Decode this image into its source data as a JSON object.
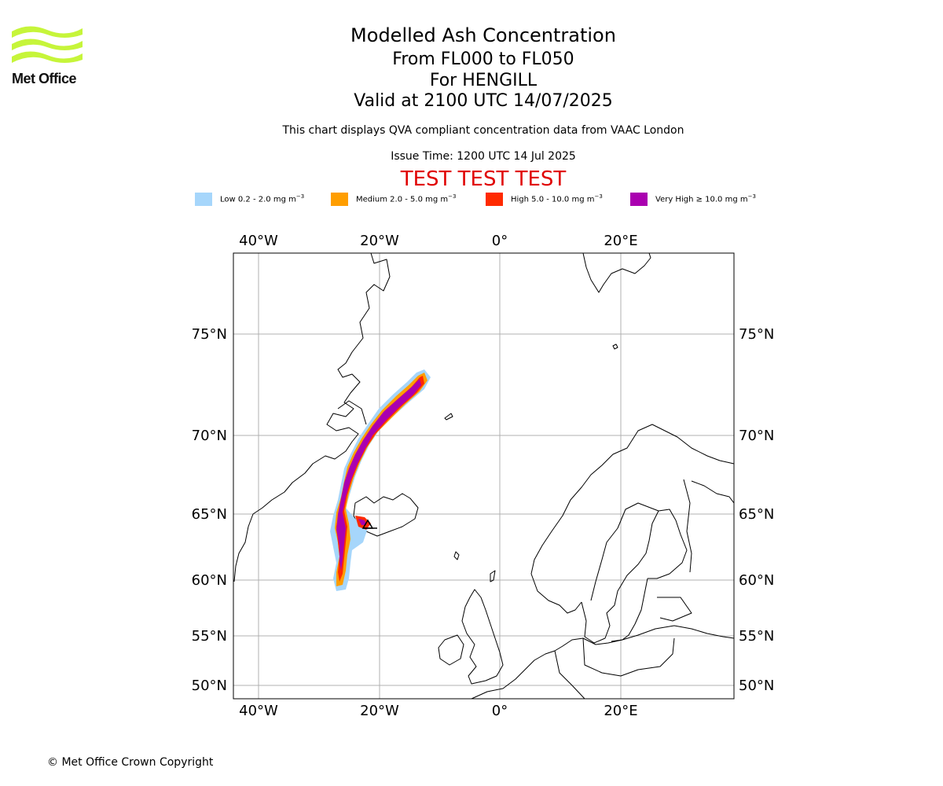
{
  "header": {
    "title": "Modelled Ash Concentration",
    "flight_levels": "From FL000 to FL050",
    "volcano": "For HENGILL",
    "valid_time": "Valid at 2100 UTC 14/07/2025",
    "compliance_note": "This chart displays QVA compliant concentration data from VAAC London",
    "issue_time": "Issue Time: 1200 UTC 14 Jul 2025",
    "test_banner": "TEST TEST TEST"
  },
  "logo": {
    "text": "Met Office",
    "color": "#c6f53a"
  },
  "legend": [
    {
      "label": "Low 0.2 - 2.0 mg m",
      "unit_exp": "−3",
      "color": "#a6d6fb"
    },
    {
      "label": "Medium 2.0 - 5.0 mg m",
      "unit_exp": "−3",
      "color": "#ff9e00"
    },
    {
      "label": "High 5.0 - 10.0 mg m",
      "unit_exp": "−3",
      "color": "#ff2a00"
    },
    {
      "label": "Very High  ≥  10.0 mg m",
      "unit_exp": "−3",
      "color": "#aa00b0"
    }
  ],
  "map": {
    "lon_labels": [
      "40°W",
      "20°W",
      "0°",
      "20°E"
    ],
    "lat_labels": [
      "75°N",
      "70°N",
      "65°N",
      "60°N",
      "55°N",
      "50°N"
    ],
    "gridline_color": "#b0b0b0",
    "coastline_color": "#000000"
  },
  "footer": {
    "copyright": "© Met Office Crown Copyright"
  }
}
